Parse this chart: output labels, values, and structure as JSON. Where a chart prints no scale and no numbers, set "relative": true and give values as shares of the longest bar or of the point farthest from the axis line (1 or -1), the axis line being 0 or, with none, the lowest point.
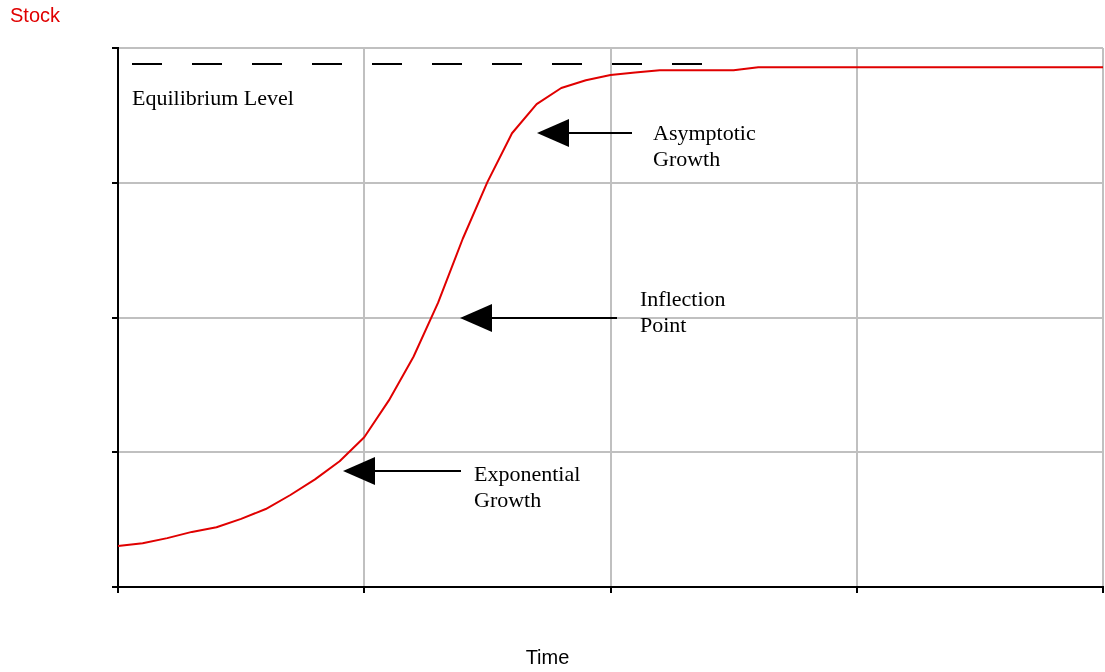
{
  "chart_data": {
    "type": "line",
    "relative": true,
    "xlabel": "Time",
    "ylabel": "Stock",
    "categories": [
      null,
      null,
      null,
      null,
      null,
      null,
      null,
      null,
      null,
      null,
      null,
      null,
      null,
      null,
      null,
      null,
      null,
      null,
      null,
      null,
      null,
      null,
      null,
      null,
      null,
      null,
      null,
      null,
      null,
      null,
      null,
      null,
      null,
      null,
      null,
      null,
      null,
      null,
      null,
      null,
      null
    ],
    "series": [
      {
        "color": "#e00000",
        "values": [
          0.079,
          0.084,
          0.094,
          0.106,
          0.115,
          0.131,
          0.15,
          0.177,
          0.207,
          0.242,
          0.288,
          0.359,
          0.443,
          0.547,
          0.67,
          0.779,
          0.873,
          0.929,
          0.96,
          0.975,
          0.985,
          0.99,
          0.994,
          0.994,
          0.994,
          0.994,
          1,
          1,
          1,
          1,
          1,
          1,
          1,
          1,
          1,
          1,
          1,
          1,
          1,
          1,
          1
        ]
      }
    ],
    "ref_lines": [
      {
        "axis": "y",
        "value": 1.006,
        "label": "Equilibrium Level",
        "color": "#000000",
        "line_style": "dashed"
      }
    ],
    "annotations": [
      "Asymptotic Growth",
      "Inflection Point",
      "Exponential Growth"
    ],
    "grid": true,
    "marker": "none",
    "line_style": "solid",
    "legend": false
  }
}
